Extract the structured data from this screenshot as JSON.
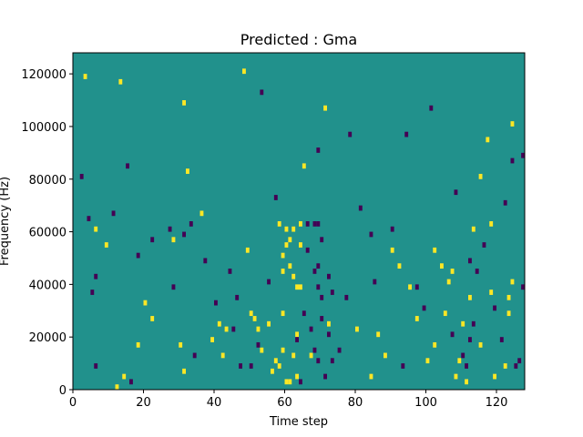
{
  "chart_data": {
    "type": "heatmap",
    "title": "Predicted : Gma",
    "xlabel": "Time step",
    "ylabel": "Frequency (Hz)",
    "xlim": [
      0,
      128
    ],
    "ylim": [
      0,
      128000
    ],
    "x_ticks": [
      0,
      20,
      40,
      60,
      80,
      100,
      120
    ],
    "x_tick_labels": [
      "0",
      "20",
      "40",
      "60",
      "80",
      "100",
      "120"
    ],
    "y_ticks": [
      0,
      20000,
      40000,
      60000,
      80000,
      100000,
      120000
    ],
    "y_tick_labels": [
      "0",
      "20000",
      "40000",
      "60000",
      "80000",
      "100000",
      "120000"
    ],
    "grid": false,
    "colors": {
      "background": "#21918c",
      "high": "#fde725",
      "low": "#440154"
    },
    "yellow_cells": [
      [
        3,
        118000
      ],
      [
        6,
        60000
      ],
      [
        9,
        54000
      ],
      [
        12,
        0
      ],
      [
        13,
        116000
      ],
      [
        14,
        4000
      ],
      [
        18,
        16000
      ],
      [
        20,
        32000
      ],
      [
        22,
        26000
      ],
      [
        28,
        56000
      ],
      [
        30,
        16000
      ],
      [
        31,
        6000
      ],
      [
        31,
        108000
      ],
      [
        32,
        82000
      ],
      [
        36,
        66000
      ],
      [
        39,
        18000
      ],
      [
        41,
        24000
      ],
      [
        42,
        12000
      ],
      [
        43,
        22000
      ],
      [
        48,
        120000
      ],
      [
        49,
        52000
      ],
      [
        50,
        28000
      ],
      [
        51,
        26000
      ],
      [
        52,
        22000
      ],
      [
        53,
        14000
      ],
      [
        55,
        24000
      ],
      [
        56,
        6000
      ],
      [
        57,
        10000
      ],
      [
        58,
        8000
      ],
      [
        58,
        62000
      ],
      [
        59,
        14000
      ],
      [
        59,
        28000
      ],
      [
        59,
        44000
      ],
      [
        59,
        50000
      ],
      [
        60,
        2000
      ],
      [
        60,
        54000
      ],
      [
        60,
        60000
      ],
      [
        61,
        2000
      ],
      [
        61,
        46000
      ],
      [
        61,
        56000
      ],
      [
        62,
        12000
      ],
      [
        62,
        42000
      ],
      [
        62,
        60000
      ],
      [
        63,
        4000
      ],
      [
        63,
        20000
      ],
      [
        63,
        38000
      ],
      [
        64,
        38000
      ],
      [
        64,
        54000
      ],
      [
        64,
        62000
      ],
      [
        65,
        84000
      ],
      [
        67,
        12000
      ],
      [
        71,
        106000
      ],
      [
        72,
        24000
      ],
      [
        80,
        22000
      ],
      [
        84,
        4000
      ],
      [
        86,
        20000
      ],
      [
        88,
        12000
      ],
      [
        90,
        52000
      ],
      [
        92,
        46000
      ],
      [
        95,
        38000
      ],
      [
        97,
        26000
      ],
      [
        100,
        10000
      ],
      [
        102,
        16000
      ],
      [
        102,
        52000
      ],
      [
        104,
        46000
      ],
      [
        105,
        28000
      ],
      [
        106,
        40000
      ],
      [
        107,
        44000
      ],
      [
        108,
        4000
      ],
      [
        109,
        10000
      ],
      [
        110,
        24000
      ],
      [
        111,
        2000
      ],
      [
        112,
        34000
      ],
      [
        113,
        60000
      ],
      [
        115,
        16000
      ],
      [
        115,
        80000
      ],
      [
        117,
        94000
      ],
      [
        118,
        36000
      ],
      [
        118,
        62000
      ],
      [
        119,
        4000
      ],
      [
        122,
        8000
      ],
      [
        123,
        28000
      ],
      [
        123,
        34000
      ],
      [
        124,
        40000
      ],
      [
        124,
        100000
      ]
    ],
    "purple_cells": [
      [
        2,
        80000
      ],
      [
        4,
        64000
      ],
      [
        5,
        36000
      ],
      [
        6,
        8000
      ],
      [
        6,
        42000
      ],
      [
        11,
        66000
      ],
      [
        15,
        84000
      ],
      [
        16,
        2000
      ],
      [
        18,
        50000
      ],
      [
        22,
        56000
      ],
      [
        27,
        60000
      ],
      [
        28,
        38000
      ],
      [
        31,
        58000
      ],
      [
        33,
        62000
      ],
      [
        34,
        12000
      ],
      [
        37,
        48000
      ],
      [
        40,
        32000
      ],
      [
        44,
        44000
      ],
      [
        45,
        22000
      ],
      [
        46,
        34000
      ],
      [
        47,
        8000
      ],
      [
        50,
        8000
      ],
      [
        52,
        16000
      ],
      [
        53,
        112000
      ],
      [
        55,
        40000
      ],
      [
        57,
        72000
      ],
      [
        63,
        18000
      ],
      [
        65,
        28000
      ],
      [
        66,
        52000
      ],
      [
        67,
        22000
      ],
      [
        68,
        14000
      ],
      [
        68,
        44000
      ],
      [
        68,
        62000
      ],
      [
        69,
        10000
      ],
      [
        69,
        38000
      ],
      [
        69,
        46000
      ],
      [
        69,
        62000
      ],
      [
        69,
        90000
      ],
      [
        70,
        26000
      ],
      [
        70,
        34000
      ],
      [
        70,
        56000
      ],
      [
        71,
        4000
      ],
      [
        72,
        20000
      ],
      [
        72,
        42000
      ],
      [
        73,
        10000
      ],
      [
        73,
        36000
      ],
      [
        75,
        14000
      ],
      [
        77,
        34000
      ],
      [
        78,
        96000
      ],
      [
        81,
        68000
      ],
      [
        84,
        58000
      ],
      [
        85,
        40000
      ],
      [
        90,
        60000
      ],
      [
        93,
        8000
      ],
      [
        94,
        96000
      ],
      [
        97,
        38000
      ],
      [
        99,
        30000
      ],
      [
        101,
        106000
      ],
      [
        107,
        20000
      ],
      [
        108,
        74000
      ],
      [
        110,
        12000
      ],
      [
        111,
        8000
      ],
      [
        112,
        18000
      ],
      [
        112,
        48000
      ],
      [
        113,
        24000
      ],
      [
        114,
        44000
      ],
      [
        116,
        54000
      ],
      [
        119,
        30000
      ],
      [
        121,
        18000
      ],
      [
        122,
        70000
      ],
      [
        124,
        86000
      ],
      [
        125,
        8000
      ],
      [
        126,
        10000
      ],
      [
        127,
        38000
      ],
      [
        127,
        88000
      ],
      [
        64,
        2000
      ],
      [
        66,
        62000
      ]
    ]
  }
}
